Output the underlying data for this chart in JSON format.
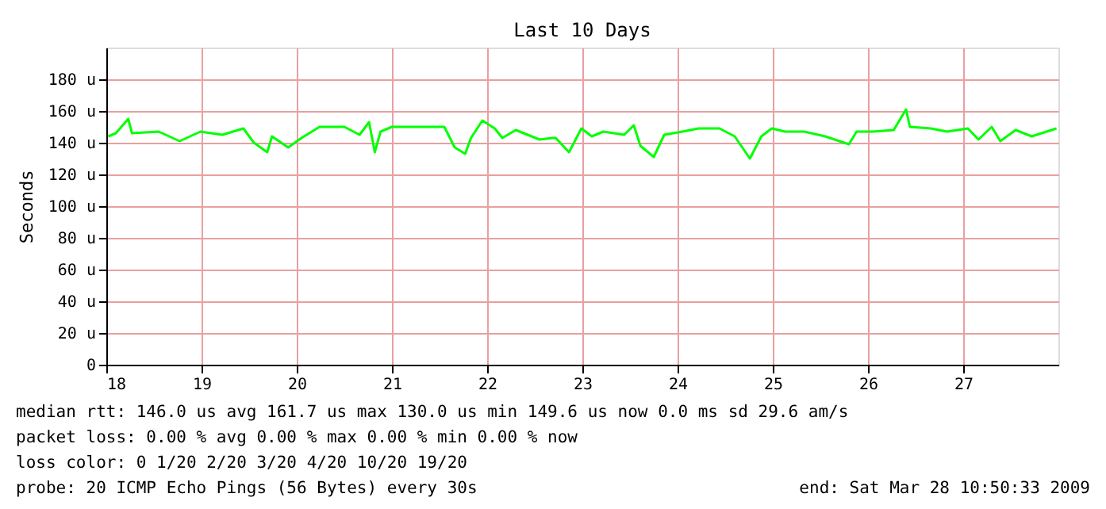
{
  "chart_data": {
    "type": "line",
    "title": "Last 10 Days",
    "ylabel": "Seconds",
    "x": [
      18.02,
      18.1,
      18.23,
      18.27,
      18.55,
      18.77,
      18.99,
      19.22,
      19.44,
      19.55,
      19.69,
      19.74,
      19.91,
      20.05,
      20.24,
      20.5,
      20.66,
      20.76,
      20.82,
      20.88,
      21.0,
      21.33,
      21.55,
      21.66,
      21.77,
      21.83,
      21.95,
      22.08,
      22.16,
      22.3,
      22.55,
      22.69,
      22.72,
      22.86,
      22.99,
      23.1,
      23.22,
      23.44,
      23.54,
      23.61,
      23.75,
      23.86,
      24.05,
      24.22,
      24.44,
      24.6,
      24.76,
      24.88,
      24.99,
      25.13,
      25.33,
      25.55,
      25.8,
      25.88,
      26.05,
      26.27,
      26.4,
      26.44,
      26.66,
      26.83,
      27.05,
      27.16,
      27.3,
      27.39,
      27.55,
      27.72,
      27.98
    ],
    "series": [
      {
        "color": "#00ff00",
        "values": [
          144,
          146,
          155,
          146,
          147,
          141,
          147,
          145,
          149,
          140,
          134,
          144,
          137,
          143,
          150,
          150,
          145,
          153,
          134,
          147,
          150,
          150,
          150,
          137,
          133,
          143,
          154,
          149,
          143,
          148,
          142,
          143,
          143,
          134,
          149,
          144,
          147,
          145,
          151,
          138,
          131,
          145,
          147,
          149,
          149,
          144,
          130,
          144,
          149,
          147,
          147,
          144,
          139,
          147,
          147,
          148,
          161,
          150,
          149,
          147,
          149,
          142,
          150,
          141,
          148,
          144,
          149
        ]
      }
    ],
    "xlim": [
      18,
      28
    ],
    "xticks": [
      18,
      19,
      20,
      21,
      22,
      23,
      24,
      25,
      26,
      27
    ],
    "ylim": [
      0,
      200
    ],
    "yticks": [
      0,
      {
        "value": 20,
        "label": "20 u"
      },
      {
        "value": 40,
        "label": "40 u"
      },
      {
        "value": 60,
        "label": "60 u"
      },
      {
        "value": 80,
        "label": "80 u"
      },
      {
        "value": 100,
        "label": "100 u"
      },
      {
        "value": 120,
        "label": "120 u"
      },
      {
        "value": 140,
        "label": "140 u"
      },
      {
        "value": 160,
        "label": "160 u"
      },
      {
        "value": 180,
        "label": "180 u"
      }
    ],
    "grid": true,
    "legend": false,
    "marker": "none",
    "line_style": "solid",
    "annotations": [
      "median rtt:  146.0 us avg   161.7 us max   130.0 us min   149.6 us now   0.0 ms sd  29.6   am/s",
      "packet loss: 0.00 % avg   0.00 % max   0.00 % min   0.00 % now",
      "loss color:  0  1/20  2/20  3/20  4/20  10/20  19/20",
      "probe:       20 ICMP Echo Pings (56 Bytes) every 30s",
      "end: Sat Mar 28 10:50:33 2009"
    ]
  }
}
